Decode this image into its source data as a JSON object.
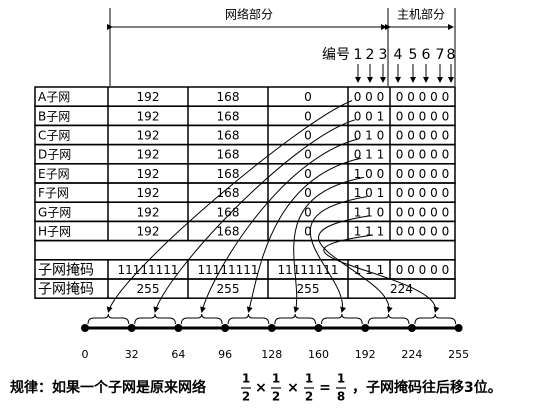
{
  "header": {
    "network": "网络部分",
    "host": "主机部分",
    "index_label": "编号",
    "bit_numbers": [
      "1",
      "2",
      "3",
      "4",
      "5",
      "6",
      "7",
      "8"
    ]
  },
  "table": {
    "rows": [
      [
        "A子网",
        "192",
        "168",
        "0",
        "0 0 0",
        "0 0 0 0 0"
      ],
      [
        "B子网",
        "192",
        "168",
        "0",
        "0 0 1",
        "0 0 0 0 0"
      ],
      [
        "C子网",
        "192",
        "168",
        "0",
        "0 1 0",
        "0 0 0 0 0"
      ],
      [
        "D子网",
        "192",
        "168",
        "0",
        "0 1 1",
        "0 0 0 0 0"
      ],
      [
        "E子网",
        "192",
        "168",
        "0",
        "1 0 0",
        "0 0 0 0 0"
      ],
      [
        "F子网",
        "192",
        "168",
        "0",
        "1 0 1",
        "0 0 0 0 0"
      ],
      [
        "G子网",
        "192",
        "168",
        "0",
        "1 1 0",
        "0 0 0 0 0"
      ],
      [
        "H子网",
        "192",
        "168",
        "0",
        "1 1 1",
        "0 0 0 0 0"
      ]
    ],
    "mask_bits": [
      "子网掩码",
      "11111111",
      "11111111",
      "11111111",
      "1 1 1",
      "0 0 0 0 0"
    ],
    "mask_decimal": [
      "子网掩码",
      "255",
      "255",
      "255",
      "224"
    ]
  },
  "number_line": {
    "labels": [
      "0",
      "32",
      "64",
      "96",
      "128",
      "160",
      "192",
      "224",
      "255"
    ]
  },
  "rule": {
    "prefix": "规律：如果一个子网是原来网络",
    "fractions": [
      {
        "num": "1",
        "den": "2"
      },
      {
        "num": "1",
        "den": "2"
      },
      {
        "num": "1",
        "den": "2"
      },
      {
        "num": "1",
        "den": "8"
      }
    ],
    "operators": [
      "×",
      "×",
      "="
    ],
    "suffix": "，子网掩码往后移3位。"
  }
}
